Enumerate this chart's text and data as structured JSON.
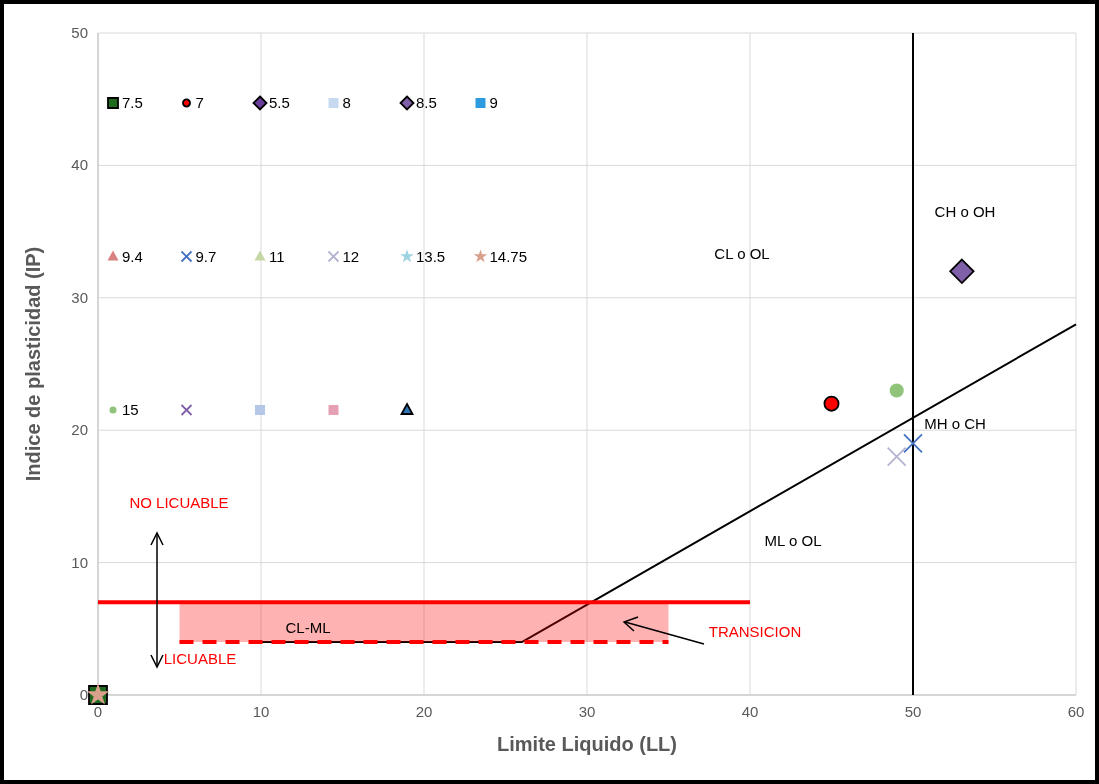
{
  "chart_data": {
    "type": "scatter",
    "xlabel": "Limite Liquido (LL)",
    "ylabel": "Indice de plasticidad (IP)",
    "xlim": [
      0,
      60
    ],
    "ylim": [
      0,
      50
    ],
    "xticks": [
      0,
      10,
      20,
      30,
      40,
      50,
      60
    ],
    "yticks": [
      0,
      10,
      20,
      30,
      40,
      50
    ],
    "grid": true,
    "legend": "top left",
    "series": [
      {
        "name": "7.5",
        "color": "#1e6b1e",
        "marker": "square",
        "x": [
          0
        ],
        "values": [
          0
        ]
      },
      {
        "name": "7",
        "color": "#ff0000",
        "marker": "circle",
        "x": [
          45
        ],
        "values": [
          22
        ]
      },
      {
        "name": "5.5",
        "color": "#6a3d9a",
        "marker": "diamond"
      },
      {
        "name": "8",
        "color": "#c6d9f1",
        "marker": "square"
      },
      {
        "name": "8.5",
        "color": "#7f5fa8",
        "marker": "diamond",
        "x": [
          53
        ],
        "values": [
          32
        ]
      },
      {
        "name": "9",
        "color": "#2e9be0",
        "marker": "square"
      },
      {
        "name": "9.4",
        "color": "#d98080",
        "marker": "triangle"
      },
      {
        "name": "9.7",
        "color": "#4472c4",
        "marker": "cross",
        "x": [
          50
        ],
        "values": [
          19
        ]
      },
      {
        "name": "11",
        "color": "#c4d7a4",
        "marker": "triangle"
      },
      {
        "name": "12",
        "color": "#b3b3d1",
        "marker": "cross",
        "x": [
          49
        ],
        "values": [
          18
        ]
      },
      {
        "name": "13.5",
        "color": "#9dd3e0",
        "marker": "star"
      },
      {
        "name": "14.75",
        "color": "#d9a08c",
        "marker": "star",
        "x": [
          0
        ],
        "values": [
          0
        ]
      },
      {
        "name": "15",
        "color": "#8fc47a",
        "marker": "circle",
        "x": [
          49
        ],
        "values": [
          23
        ]
      },
      {
        "color": "#7f5fa8",
        "marker": "cross"
      },
      {
        "color": "#b4c7e7",
        "marker": "square"
      },
      {
        "color": "#e6a0b4",
        "marker": "square"
      },
      {
        "color": "#2e75b6",
        "marker": "triangle"
      },
      {
        "type": "line",
        "color": "#000000",
        "line_style": "solid",
        "x": [
          10,
          26,
          60
        ],
        "values": [
          4,
          4,
          28
        ]
      },
      {
        "type": "line",
        "color": "#ff0000",
        "line_style": "solid",
        "x": [
          0,
          40
        ],
        "values": [
          7,
          7
        ]
      },
      {
        "type": "line",
        "color": "#ff0000",
        "line_style": "dashed",
        "x": [
          5,
          35
        ],
        "values": [
          4,
          4
        ],
        "lower": [
          4,
          4
        ],
        "upper": [
          7,
          7
        ]
      }
    ],
    "ref_lines": [
      {
        "axis": "x",
        "value": 50,
        "color": "#000000"
      }
    ],
    "annotations": [
      "NO LICUABLE",
      "LICUABLE",
      "CL-ML",
      "TRANSICION",
      "CL o OL",
      "CH o OH",
      "MH o CH",
      "ML o OL"
    ]
  }
}
